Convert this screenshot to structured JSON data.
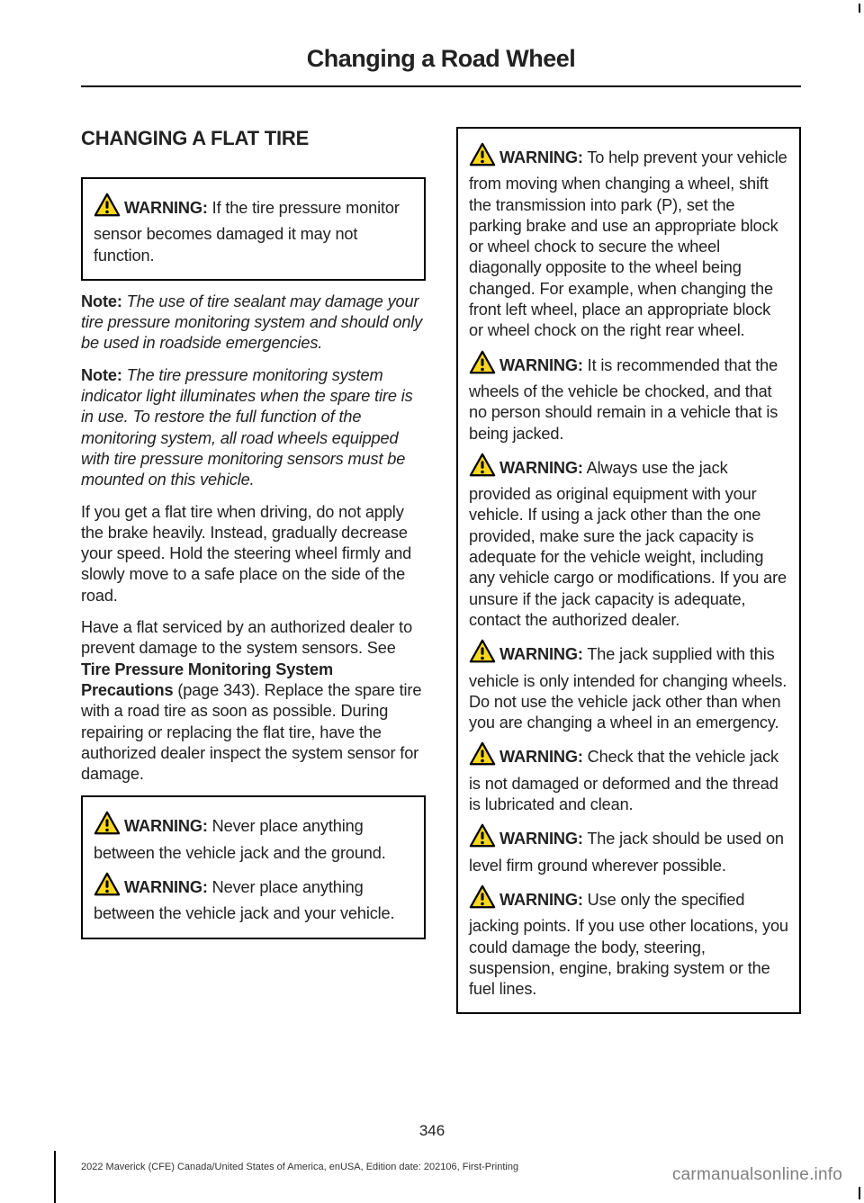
{
  "header": {
    "title": "Changing a Road Wheel"
  },
  "section_heading": "CHANGING A FLAT TIRE",
  "left": {
    "warn_box_1": [
      {
        "label": "WARNING:",
        "text": " If the tire pressure monitor sensor becomes damaged it may not function."
      }
    ],
    "notes": [
      {
        "label": "Note:",
        "text": " The use of tire sealant may damage your tire pressure monitoring system and should only be used in roadside emergencies."
      },
      {
        "label": "Note:",
        "text": " The tire pressure monitoring system indicator light illuminates when the spare tire is in use. To restore the full function of the monitoring system, all road wheels equipped with tire pressure monitoring sensors must be mounted on this vehicle."
      }
    ],
    "paras": [
      "If you get a flat tire when driving, do not apply the brake heavily. Instead, gradually decrease your speed. Hold the steering wheel firmly and slowly move to a safe place on the side of the road.",
      {
        "pre": "Have a flat serviced by an authorized dealer to prevent damage to the system sensors. See ",
        "bold": "Tire Pressure Monitoring System Precautions",
        "post": " (page 343). Replace the spare tire with a road tire as soon as possible. During repairing or replacing the flat tire, have the authorized dealer inspect the system sensor for damage."
      }
    ],
    "warn_box_2": [
      {
        "label": "WARNING:",
        "text": " Never place anything between the vehicle jack and the ground."
      },
      {
        "label": "WARNING:",
        "text": " Never place anything between the vehicle jack and your vehicle."
      }
    ]
  },
  "right": {
    "warn_box": [
      {
        "label": "WARNING:",
        "text": " To help prevent your vehicle from moving when changing a wheel, shift the transmission into park (P), set the parking brake and use an appropriate block or wheel chock to secure the wheel diagonally opposite to the wheel being changed. For example, when changing the front left wheel, place an appropriate block or wheel chock on the right rear wheel."
      },
      {
        "label": "WARNING:",
        "text": " It is recommended that the wheels of the vehicle be chocked, and that no person should remain in a vehicle that is being jacked."
      },
      {
        "label": "WARNING:",
        "text": " Always use the jack provided as original equipment with your vehicle. If using a jack other than the one provided, make sure the jack capacity is adequate for the vehicle weight, including any vehicle cargo or modifications. If you are unsure if the jack capacity is adequate, contact the authorized dealer."
      },
      {
        "label": "WARNING:",
        "text": " The jack supplied with this vehicle is only intended for changing wheels. Do not use the vehicle jack other than when you are changing a wheel in an emergency."
      },
      {
        "label": "WARNING:",
        "text": " Check that the vehicle jack is not damaged or deformed and the thread is lubricated and clean."
      },
      {
        "label": "WARNING:",
        "text": " The jack should be used on level firm ground wherever possible."
      },
      {
        "label": "WARNING:",
        "text": " Use only the specified jacking points. If you use other locations, you could damage the body, steering, suspension, engine, braking system or the fuel lines."
      }
    ]
  },
  "page_number": "346",
  "footer": "2022 Maverick (CFE) Canada/United States of America, enUSA, Edition date: 202106, First-Printing",
  "watermark": "carmanualsonline.info",
  "style": {
    "icon_stroke": "#000000",
    "icon_fill": "#f9d71c",
    "icon_size": 30
  }
}
